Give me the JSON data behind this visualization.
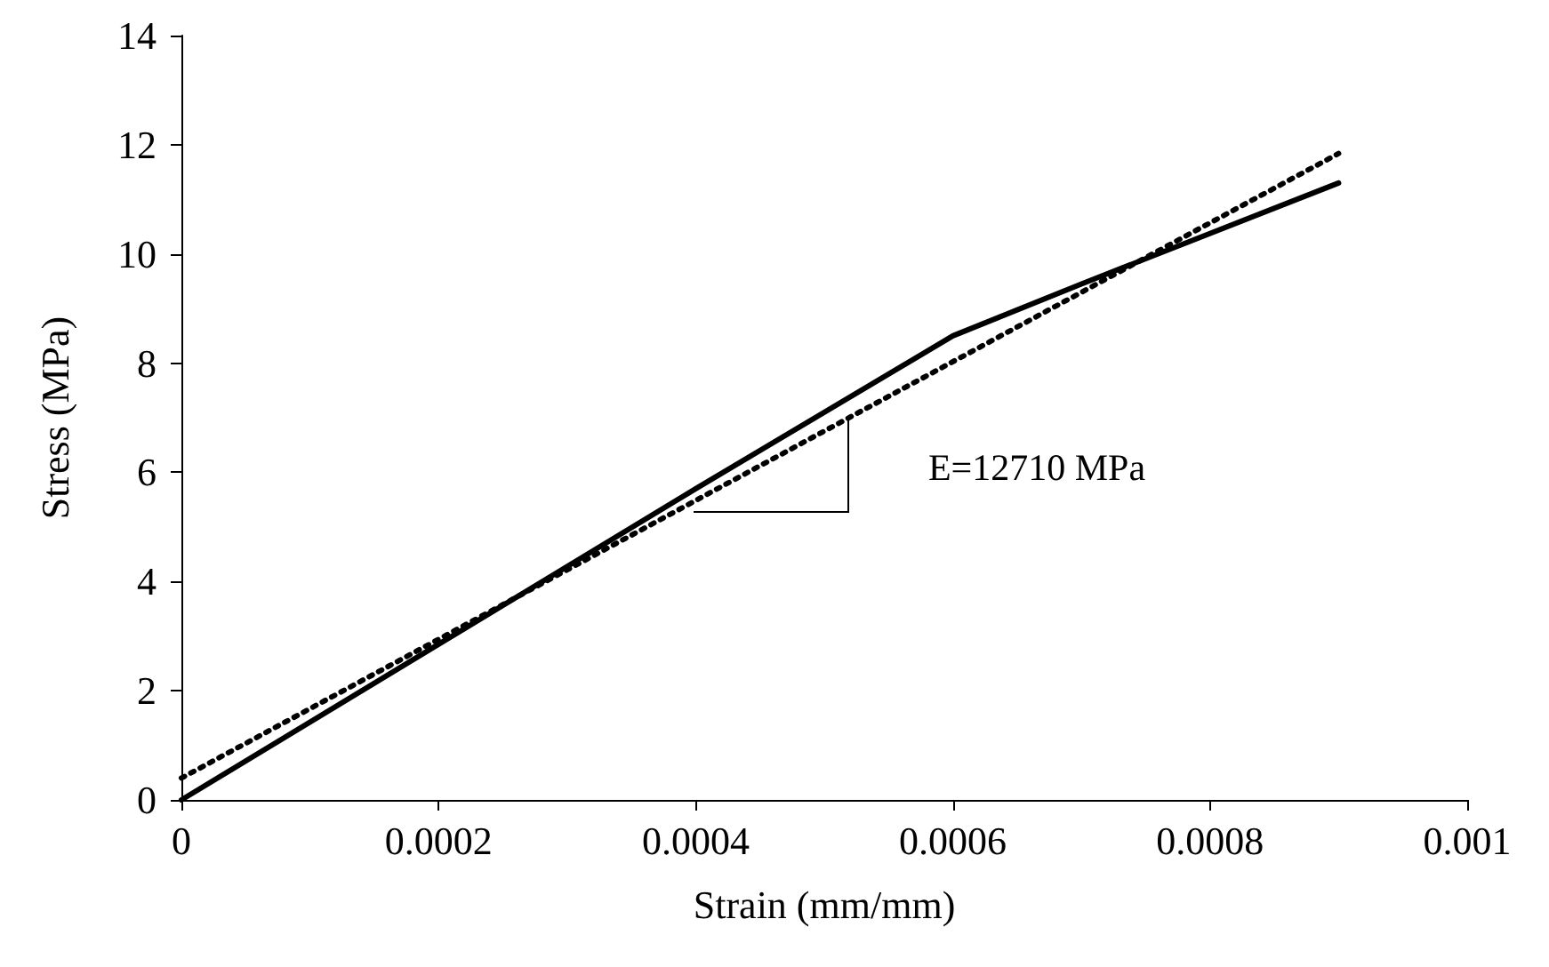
{
  "chart_data": {
    "type": "line",
    "xlabel": "Strain (mm/mm)",
    "ylabel": "Stress (MPa)",
    "xlim": [
      0,
      0.001
    ],
    "xticks": [
      0,
      0.0002,
      0.0004,
      0.0006,
      0.0008,
      0.001
    ],
    "ylim": [
      0,
      14
    ],
    "yticks": [
      0,
      2,
      4,
      6,
      8,
      10,
      12,
      14
    ],
    "grid": false,
    "marker": "none",
    "series": [
      {
        "color": "#000000",
        "line_style": "solid",
        "x": [
          0,
          0.0002,
          0.0004,
          0.0006,
          0.0007,
          0.0009
        ],
        "values": [
          0,
          2.85,
          5.7,
          8.5,
          9.45,
          11.3
        ]
      },
      {
        "color": "#000000",
        "line_style": "dotted",
        "x": [
          0,
          0.0009
        ],
        "values": [
          0.4,
          11.84
        ]
      }
    ],
    "annotations": [
      {
        "text": "E=12710 MPa",
        "x": 0.00052,
        "y": 7.0
      }
    ]
  }
}
